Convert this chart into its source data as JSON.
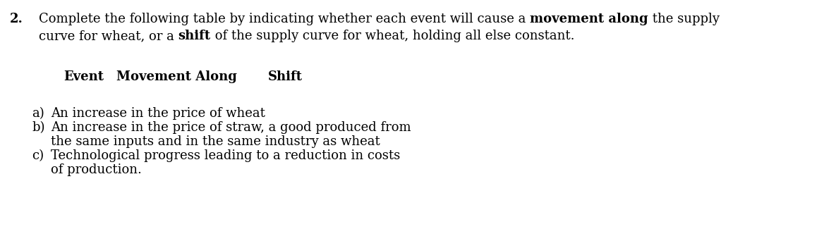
{
  "background_color": "#ffffff",
  "fig_width": 11.68,
  "fig_height": 3.42,
  "dpi": 100,
  "font_family": "DejaVu Serif",
  "font_size": 13.0,
  "question_number": "2.",
  "intro_line1_parts": [
    {
      "text": "Complete the following table by indicating whether each event will cause a ",
      "bold": false
    },
    {
      "text": "movement along",
      "bold": true
    },
    {
      "text": " the supply",
      "bold": false
    }
  ],
  "intro_line2_parts": [
    {
      "text": "curve for wheat, or a ",
      "bold": false
    },
    {
      "text": "shift",
      "bold": true
    },
    {
      "text": " of the supply curve for wheat, holding all else constant.",
      "bold": false
    }
  ],
  "header_event": "Event",
  "header_movement": "Movement Along",
  "header_shift": "Shift",
  "events": [
    {
      "label": "a)",
      "lines": [
        "An increase in the price of wheat"
      ]
    },
    {
      "label": "b)",
      "lines": [
        "An increase in the price of straw, a good produced from",
        "the same inputs and in the same industry as wheat"
      ]
    },
    {
      "label": "c)",
      "lines": [
        "Technological progress leading to a reduction in costs",
        "of production."
      ]
    }
  ]
}
